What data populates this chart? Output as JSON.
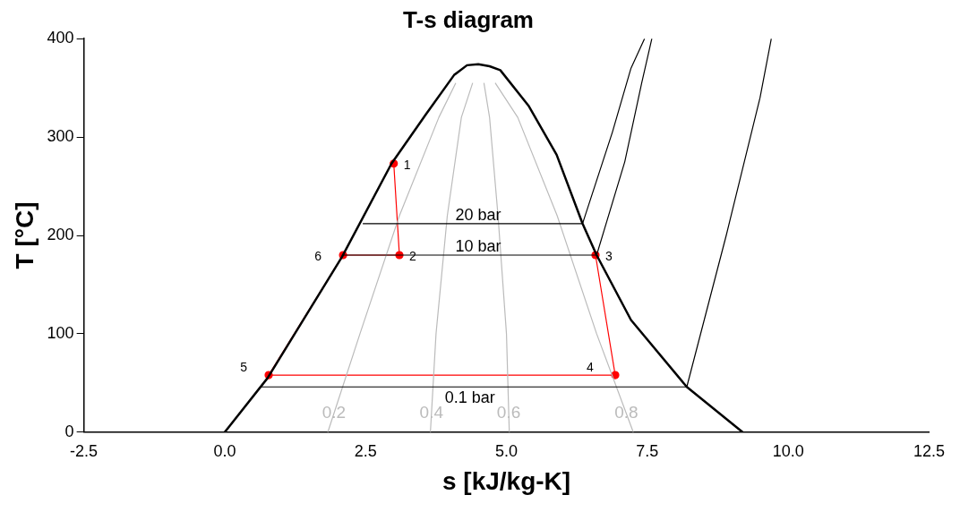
{
  "chart_data": {
    "type": "line",
    "title": "T-s diagram",
    "xlabel": "s [kJ/kg-K]",
    "ylabel": "T [°C]",
    "xlim": [
      -2.5,
      12.5
    ],
    "xticks": [
      -2.5,
      {
        "value": 0,
        "label": "0.0"
      },
      2.5,
      {
        "value": 5,
        "label": "5.0"
      },
      7.5,
      {
        "value": 10,
        "label": "10.0"
      },
      12.5
    ],
    "ylim": [
      0,
      400
    ],
    "yticks": [
      0,
      100,
      200,
      300,
      400
    ],
    "grid": false,
    "legend": false,
    "marker": "none",
    "series": [
      {
        "color": "#000000",
        "x": [
          0,
          0.76,
          2.08,
          2.96,
          3.57,
          4.07,
          4.3,
          4.5,
          4.7,
          4.89,
          5.39,
          5.89,
          6.35,
          6.6,
          7.21,
          8.2,
          9.19
        ],
        "values": [
          0,
          55,
          178,
          273,
          323,
          363,
          373,
          374,
          372,
          368,
          332,
          282,
          212,
          180,
          114,
          46,
          0
        ]
      },
      {
        "color": "#000000",
        "x": [
          2.45,
          6.35,
          6.88,
          7.21,
          7.45
        ],
        "values": [
          212,
          212,
          305,
          370,
          400
        ]
      },
      {
        "color": "#000000",
        "x": [
          2.1,
          6.6,
          7.1,
          7.4,
          7.58
        ],
        "values": [
          180,
          180,
          275,
          355,
          400
        ]
      },
      {
        "color": "#000000",
        "x": [
          0.63,
          8.2,
          8.9,
          9.5,
          9.7
        ],
        "values": [
          46,
          46,
          200,
          340,
          400
        ]
      },
      {
        "color": "#bbbbbb",
        "x": [
          1.83,
          2.4,
          3.1,
          3.8,
          4.1
        ],
        "values": [
          0,
          100,
          220,
          320,
          355
        ]
      },
      {
        "color": "#bbbbbb",
        "x": [
          3.65,
          3.75,
          3.95,
          4.2,
          4.4
        ],
        "values": [
          0,
          100,
          220,
          320,
          355
        ]
      },
      {
        "color": "#bbbbbb",
        "x": [
          5.05,
          5.0,
          4.85,
          4.7,
          4.6
        ],
        "values": [
          0,
          100,
          220,
          320,
          355
        ]
      },
      {
        "color": "#bbbbbb",
        "x": [
          7.25,
          6.6,
          5.9,
          5.2,
          4.8
        ],
        "values": [
          0,
          100,
          220,
          320,
          355
        ]
      },
      {
        "color": "#ff0000",
        "marker": "circle",
        "x": [
          3.0,
          3.1,
          2.1,
          0.78,
          6.93,
          6.58
        ],
        "values": [
          273,
          180,
          180,
          58,
          58,
          180
        ]
      }
    ],
    "annotations": [
      {
        "text": "1",
        "x": 3.0,
        "y": 273
      },
      {
        "text": "2",
        "x": 3.1,
        "y": 180
      },
      {
        "text": "3",
        "x": 6.58,
        "y": 180
      },
      {
        "text": "4",
        "x": 6.93,
        "y": 58
      },
      {
        "text": "5",
        "x": 0.78,
        "y": 58
      },
      {
        "text": "6",
        "x": 2.1,
        "y": 180
      },
      {
        "text": "20 bar",
        "x": 4.5,
        "y": 212
      },
      {
        "text": "10 bar",
        "x": 4.5,
        "y": 180
      },
      {
        "text": "0.1 bar",
        "x": 4.35,
        "y": 46
      },
      {
        "text": "0.2",
        "x": 1.938,
        "y": 19
      },
      {
        "text": "0.4",
        "x": 3.669,
        "y": 19
      },
      {
        "text": "0.6",
        "x": 5.04,
        "y": 19
      },
      {
        "text": "0.8",
        "x": 7.126,
        "y": 19
      }
    ]
  }
}
